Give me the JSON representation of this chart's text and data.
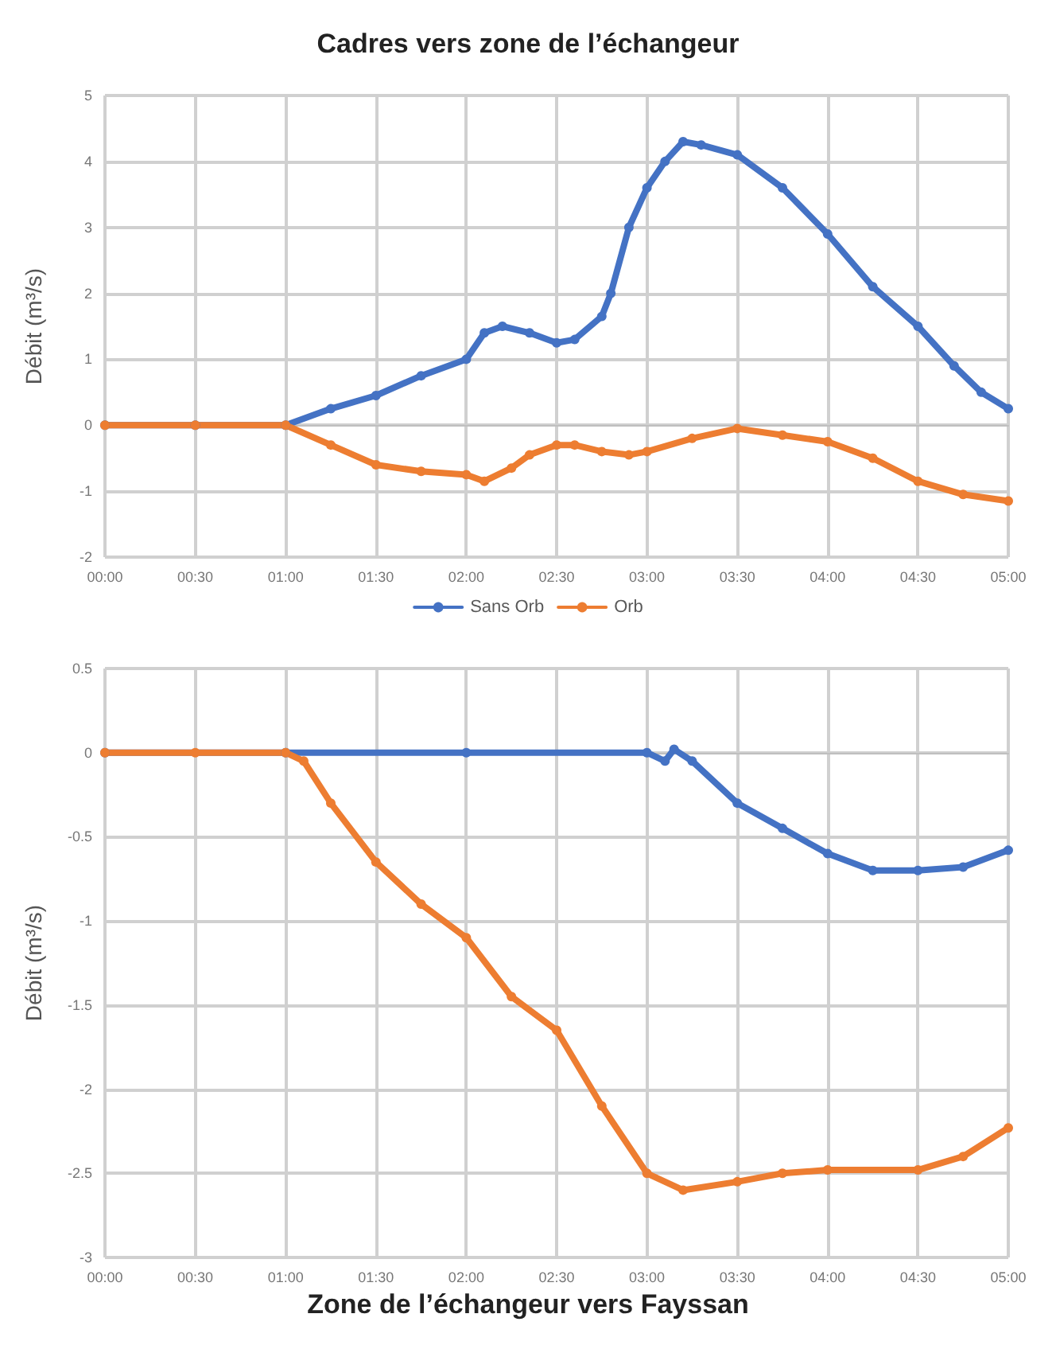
{
  "chart_data": [
    {
      "type": "line",
      "title": "Cadres vers zone de l’échangeur",
      "ylabel": "Débit (m³/s)",
      "xlim": [
        0,
        5
      ],
      "xticks": [
        {
          "value": 0,
          "label": "00:00"
        },
        {
          "value": 0.5,
          "label": "00:30"
        },
        {
          "value": 1,
          "label": "01:00"
        },
        {
          "value": 1.5,
          "label": "01:30"
        },
        {
          "value": 2,
          "label": "02:00"
        },
        {
          "value": 2.5,
          "label": "02:30"
        },
        {
          "value": 3,
          "label": "03:00"
        },
        {
          "value": 3.5,
          "label": "03:30"
        },
        {
          "value": 4,
          "label": "04:00"
        },
        {
          "value": 4.5,
          "label": "04:30"
        },
        {
          "value": 5,
          "label": "05:00"
        }
      ],
      "ylim": [
        -2,
        5
      ],
      "yticks": [
        -2,
        -1,
        0,
        1,
        2,
        3,
        4,
        5
      ],
      "grid": true,
      "legend": "bottom",
      "marker": "circle",
      "series": [
        {
          "name": "Sans Orb",
          "color": "#4472c4",
          "x": [
            0,
            0.5,
            1,
            1.25,
            1.5,
            1.75,
            2,
            2.1,
            2.2,
            2.35,
            2.5,
            2.6,
            2.75,
            2.8,
            2.9,
            3,
            3.1,
            3.2,
            3.3,
            3.5,
            3.75,
            4,
            4.25,
            4.5,
            4.7,
            4.85,
            5
          ],
          "values": [
            0,
            0,
            0,
            0.25,
            0.45,
            0.75,
            1,
            1.4,
            1.5,
            1.4,
            1.25,
            1.3,
            1.65,
            2,
            3,
            3.6,
            4,
            4.3,
            4.25,
            4.1,
            3.6,
            2.9,
            2.1,
            1.5,
            0.9,
            0.5,
            0.25
          ]
        },
        {
          "name": "Orb",
          "color": "#ed7d31",
          "x": [
            0,
            0.5,
            1,
            1.25,
            1.5,
            1.75,
            2,
            2.1,
            2.25,
            2.35,
            2.5,
            2.6,
            2.75,
            2.9,
            3,
            3.25,
            3.5,
            3.75,
            4,
            4.25,
            4.5,
            4.75,
            5
          ],
          "values": [
            0,
            0,
            0,
            -0.3,
            -0.6,
            -0.7,
            -0.75,
            -0.85,
            -0.65,
            -0.45,
            -0.3,
            -0.3,
            -0.4,
            -0.45,
            -0.4,
            -0.2,
            -0.05,
            -0.15,
            -0.25,
            -0.5,
            -0.85,
            -1.05,
            -1.15
          ]
        }
      ]
    },
    {
      "type": "line",
      "title": "Zone de l’échangeur vers Fayssan",
      "ylabel": "Débit (m³/s)",
      "xlim": [
        0,
        5
      ],
      "xticks": [
        {
          "value": 0,
          "label": "00:00"
        },
        {
          "value": 0.5,
          "label": "00:30"
        },
        {
          "value": 1,
          "label": "01:00"
        },
        {
          "value": 1.5,
          "label": "01:30"
        },
        {
          "value": 2,
          "label": "02:00"
        },
        {
          "value": 2.5,
          "label": "02:30"
        },
        {
          "value": 3,
          "label": "03:00"
        },
        {
          "value": 3.5,
          "label": "03:30"
        },
        {
          "value": 4,
          "label": "04:00"
        },
        {
          "value": 4.5,
          "label": "04:30"
        },
        {
          "value": 5,
          "label": "05:00"
        }
      ],
      "ylim": [
        -3,
        0.5
      ],
      "yticks": [
        -3,
        -2.5,
        -2,
        -1.5,
        -1,
        -0.5,
        0,
        0.5
      ],
      "grid": true,
      "marker": "circle",
      "series": [
        {
          "color": "#4472c4",
          "x": [
            0,
            1,
            2,
            3,
            3.1,
            3.15,
            3.25,
            3.5,
            3.75,
            4,
            4.25,
            4.5,
            4.75,
            5
          ],
          "values": [
            0,
            0,
            0,
            0,
            -0.05,
            0.02,
            -0.05,
            -0.3,
            -0.45,
            -0.6,
            -0.7,
            -0.7,
            -0.68,
            -0.58
          ]
        },
        {
          "color": "#ed7d31",
          "x": [
            0,
            0.5,
            1,
            1.1,
            1.25,
            1.5,
            1.75,
            2,
            2.25,
            2.5,
            2.75,
            3,
            3.2,
            3.5,
            3.75,
            4,
            4.5,
            4.75,
            5
          ],
          "values": [
            0,
            0,
            0,
            -0.05,
            -0.3,
            -0.65,
            -0.9,
            -1.1,
            -1.45,
            -1.65,
            -2.1,
            -2.5,
            -2.6,
            -2.55,
            -2.5,
            -2.48,
            -2.48,
            -2.4,
            -2.23
          ]
        }
      ]
    }
  ]
}
